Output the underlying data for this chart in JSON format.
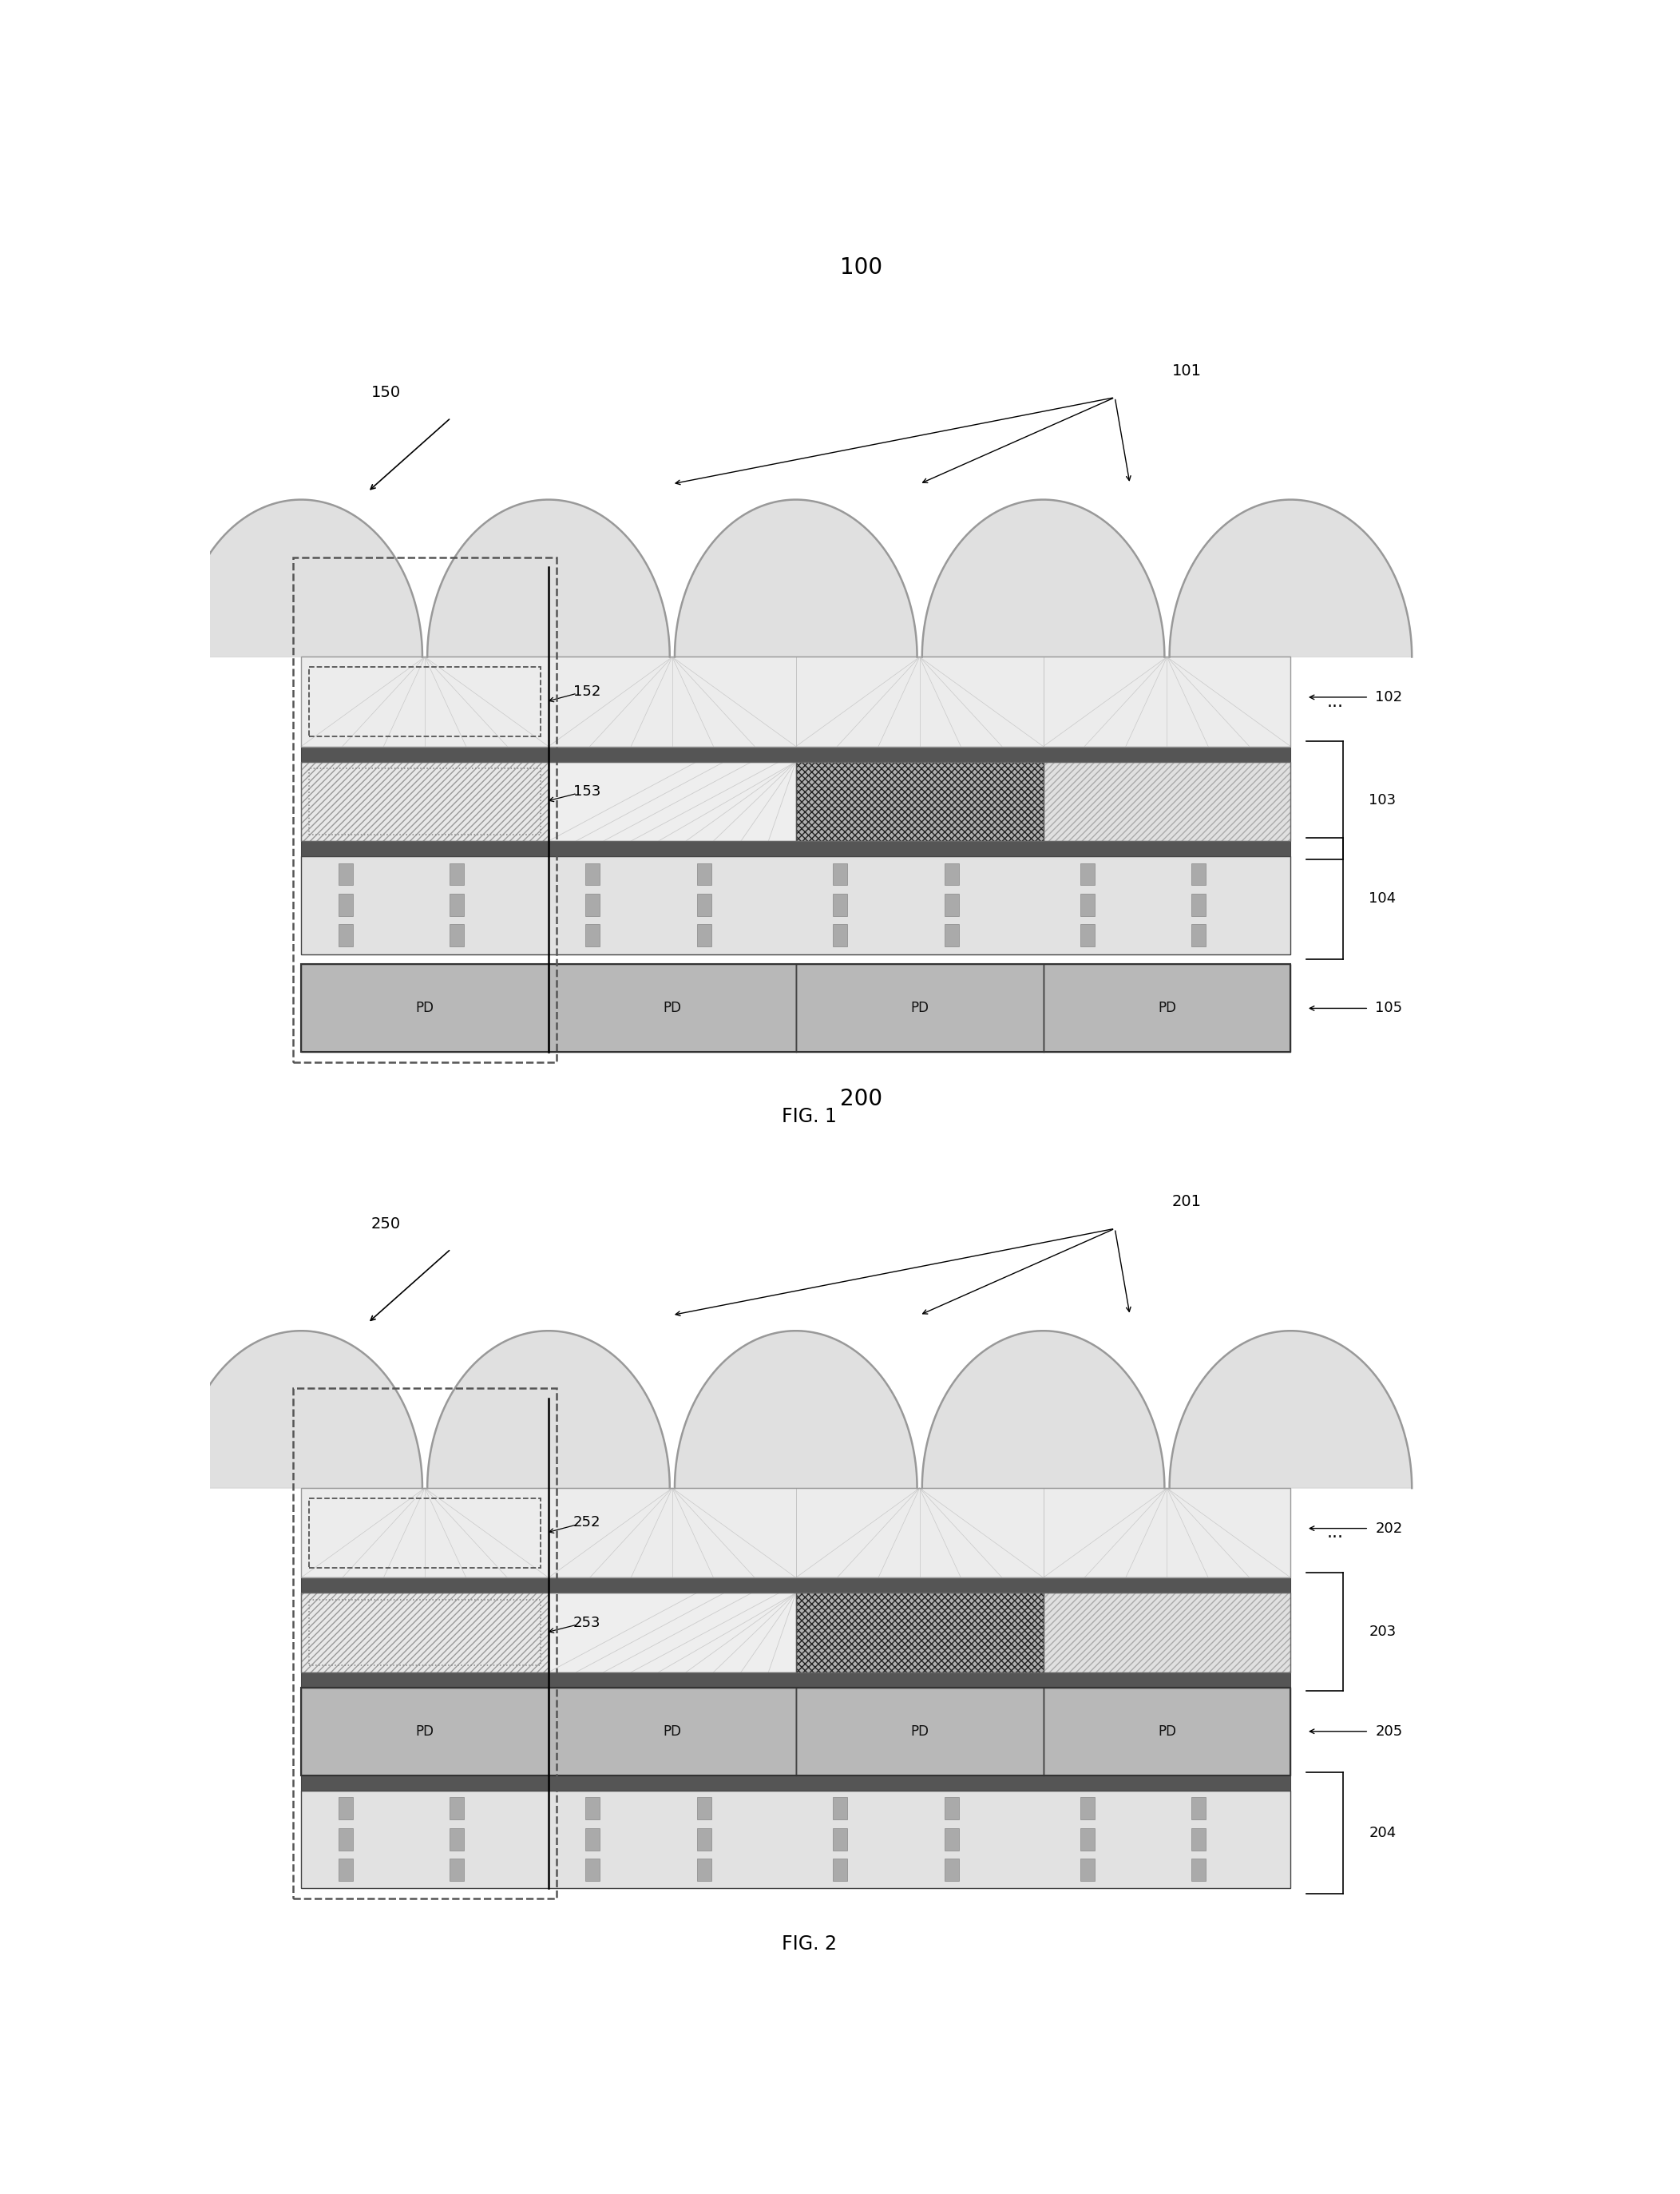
{
  "fig_width": 21.04,
  "fig_height": 27.47,
  "bg_color": "#ffffff",
  "fig1": {
    "label": "100",
    "ref_150": "150",
    "ref_101": "101",
    "ref_102": "102",
    "ref_152": "152",
    "ref_153": "153",
    "ref_103": "103",
    "ref_104": "104",
    "ref_105": "105",
    "fig_label": "FIG. 1"
  },
  "fig2": {
    "label": "200",
    "ref_250": "250",
    "ref_201": "201",
    "ref_202": "202",
    "ref_252": "252",
    "ref_253": "253",
    "ref_203": "203",
    "ref_204": "204",
    "ref_205": "205",
    "fig_label": "FIG. 2"
  }
}
